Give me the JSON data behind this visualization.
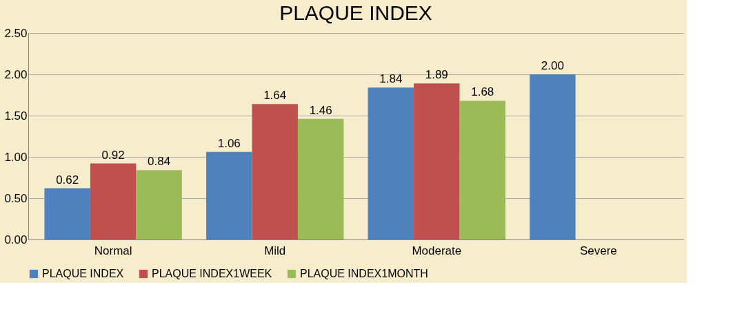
{
  "chart_data": {
    "type": "bar",
    "title": "PLAQUE INDEX",
    "categories": [
      "Normal",
      "Mild",
      "Moderate",
      "Severe"
    ],
    "series": [
      {
        "name": "PLAQUE INDEX",
        "color": "#4f81bd",
        "values": [
          0.62,
          1.06,
          1.84,
          2.0
        ],
        "value_labels": [
          "0.62",
          "1.06",
          "1.84",
          "2.00"
        ]
      },
      {
        "name": "PLAQUE INDEX1WEEK",
        "color": "#c0504d",
        "values": [
          0.92,
          1.64,
          1.89,
          null
        ],
        "value_labels": [
          "0.92",
          "1.64",
          "1.89",
          null
        ]
      },
      {
        "name": "PLAQUE INDEX1MONTH",
        "color": "#9bbb59",
        "values": [
          0.84,
          1.46,
          1.68,
          null
        ],
        "value_labels": [
          "0.84",
          "1.46",
          "1.68",
          null
        ]
      }
    ],
    "ylim": [
      0,
      2.5
    ],
    "yticks": [
      {
        "value": 0,
        "label": "0.00"
      },
      {
        "value": 0.5,
        "label": "0.50"
      },
      {
        "value": 1,
        "label": "1.00"
      },
      {
        "value": 1.5,
        "label": "1.50"
      },
      {
        "value": 2,
        "label": "2.00"
      },
      {
        "value": 2.5,
        "label": "2.50"
      }
    ],
    "grid": "y",
    "legend": "bottom"
  }
}
